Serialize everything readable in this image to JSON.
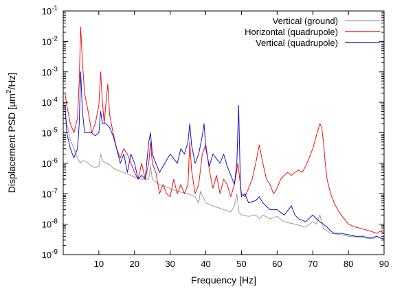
{
  "chart_data": {
    "type": "line",
    "title": "",
    "xlabel": "Frequency [Hz]",
    "ylabel": "Displacement PSD [µm²/Hz]",
    "ylabel_parts": {
      "pre": "Displacement PSD [µm",
      "sup": "2",
      "post": "/Hz]"
    },
    "xlim": [
      0,
      90
    ],
    "ylim": [
      1e-09,
      0.1
    ],
    "yscale": "log",
    "grid": false,
    "legend_position": "top-right",
    "x_ticks": [
      10,
      20,
      30,
      40,
      50,
      60,
      70,
      80,
      90
    ],
    "y_ticks": [
      {
        "exp": -9,
        "label_base": "10",
        "label_exp": "-9"
      },
      {
        "exp": -8,
        "label_base": "10",
        "label_exp": "-8"
      },
      {
        "exp": -7,
        "label_base": "10",
        "label_exp": "-7"
      },
      {
        "exp": -6,
        "label_base": "10",
        "label_exp": "-6"
      },
      {
        "exp": -5,
        "label_base": "10",
        "label_exp": "-5"
      },
      {
        "exp": -4,
        "label_base": "10",
        "label_exp": "-4"
      },
      {
        "exp": -3,
        "label_base": "10",
        "label_exp": "-3"
      },
      {
        "exp": -2,
        "label_base": "10",
        "label_exp": "-2"
      },
      {
        "exp": -1,
        "label_base": "10",
        "label_exp": "-1"
      }
    ],
    "series": [
      {
        "name": "Vertical (ground)",
        "color": "#999999",
        "x": [
          0.5,
          1,
          2,
          3,
          4,
          4.8,
          5.3,
          6,
          7,
          8,
          9,
          10,
          10.5,
          11,
          12,
          13,
          14,
          15,
          17,
          20,
          22,
          24,
          24.5,
          25,
          27,
          30,
          32,
          35,
          37,
          38,
          38.5,
          40,
          42,
          45,
          47,
          48,
          48.7,
          49.3,
          50,
          52,
          54,
          55,
          56,
          58,
          60,
          62,
          65,
          68,
          70,
          71,
          72,
          72.5,
          73,
          74,
          75,
          78,
          80,
          82,
          85,
          87,
          88,
          89,
          90
        ],
        "y": [
          5e-05,
          2e-05,
          6e-06,
          3e-06,
          1.5e-06,
          1e-06,
          1.2e-06,
          1.2e-06,
          1e-06,
          8e-07,
          7e-07,
          8e-07,
          2e-06,
          1.2e-06,
          1e-06,
          9e-07,
          7e-07,
          6e-07,
          5e-07,
          3.5e-07,
          3e-07,
          3e-07,
          8e-07,
          3e-07,
          2e-07,
          1.5e-07,
          1.2e-07,
          1e-07,
          8e-08,
          5e-08,
          1.2e-07,
          5e-08,
          4e-08,
          3e-08,
          2.5e-08,
          4e-08,
          1e-07,
          2.5e-08,
          2e-08,
          1.8e-08,
          2e-08,
          1.5e-08,
          2e-08,
          1.5e-08,
          1.8e-08,
          1.2e-08,
          1e-08,
          8e-09,
          1.2e-08,
          1e-08,
          2e-08,
          1.2e-08,
          7e-09,
          6e-09,
          5e-09,
          4.5e-09,
          4e-09,
          3.8e-09,
          3.5e-09,
          3.3e-09,
          4e-09,
          3.5e-09,
          3.3e-09
        ]
      },
      {
        "name": "Horizontal (quadrupole)",
        "color": "#ee1111",
        "x": [
          0.5,
          1,
          2,
          3,
          4,
          4.5,
          4.9,
          5.4,
          6,
          7,
          8,
          9,
          10,
          10.5,
          11,
          11.5,
          12,
          12.5,
          13,
          14,
          15,
          16,
          17,
          18,
          19,
          20,
          21,
          22,
          23,
          24,
          24.5,
          25,
          26,
          27,
          28,
          29,
          30,
          31,
          32,
          33,
          34,
          35,
          35.5,
          36,
          37,
          38,
          39,
          40,
          41,
          42,
          43,
          44,
          45,
          46,
          47,
          48,
          49,
          50,
          51,
          52,
          53,
          54,
          55,
          56,
          57,
          58,
          59,
          60,
          61,
          62,
          63,
          64,
          65,
          66,
          67,
          68,
          69,
          70,
          71,
          72,
          72.5,
          73,
          73.5,
          74,
          75,
          76,
          77,
          78,
          80,
          82,
          84,
          86,
          88,
          89,
          90
        ],
        "y": [
          0.0002,
          8e-05,
          2e-05,
          1e-05,
          3e-05,
          0.0005,
          0.03,
          0.002,
          0.0002,
          5e-05,
          1e-05,
          2e-05,
          8e-05,
          0.001,
          0.0001,
          2e-05,
          0.0001,
          0.0004,
          4e-05,
          1e-05,
          3e-06,
          1.5e-06,
          3e-06,
          2e-06,
          1e-06,
          5e-07,
          3e-07,
          1e-06,
          3e-07,
          1e-06,
          5e-06,
          1e-06,
          5e-07,
          1e-07,
          2e-07,
          1e-07,
          8e-08,
          3e-07,
          1e-07,
          2e-07,
          1e-07,
          2e-07,
          5e-06,
          6e-07,
          1e-07,
          2e-07,
          2e-06,
          4e-06,
          6e-07,
          1.5e-07,
          4e-07,
          1e-07,
          3e-07,
          2e-07,
          8e-08,
          2e-07,
          1e-06,
          1e-07,
          8e-08,
          1.5e-07,
          3e-07,
          1e-06,
          4e-06,
          1e-06,
          3e-07,
          2e-07,
          1e-07,
          1.5e-07,
          3e-07,
          4e-07,
          5e-07,
          4e-07,
          5e-07,
          6e-07,
          5e-07,
          8e-07,
          1.5e-06,
          3e-06,
          8e-06,
          2e-05,
          1.5e-05,
          5e-06,
          1e-06,
          3e-07,
          1e-07,
          5e-08,
          3e-08,
          2e-08,
          1e-08,
          8e-09,
          7e-09,
          6e-09,
          5e-09,
          6e-09,
          5e-09
        ]
      },
      {
        "name": "Vertical (quadrupole)",
        "color": "#1111cc",
        "x": [
          0.5,
          1,
          2,
          3,
          4,
          4.5,
          4.9,
          5.4,
          6,
          7,
          8,
          9,
          10,
          10.5,
          11,
          12,
          13,
          14,
          15,
          16,
          17,
          18,
          19,
          20,
          21,
          22,
          23,
          24,
          24.5,
          25,
          26,
          27,
          28,
          30,
          32,
          33,
          34,
          35,
          35.5,
          36,
          37,
          38,
          39,
          39.5,
          40,
          41,
          42,
          44,
          45,
          46,
          47,
          48,
          48.7,
          49.2,
          49.7,
          50,
          51,
          52,
          54,
          55,
          56,
          58,
          60,
          62,
          64,
          65,
          66,
          68,
          70,
          71,
          72,
          73,
          74,
          75,
          76,
          78,
          80,
          82,
          84,
          86,
          88,
          89,
          90
        ],
        "y": [
          8e-05,
          1e-05,
          3e-06,
          1.5e-06,
          3e-06,
          2e-05,
          0.001,
          5e-05,
          1e-05,
          1e-05,
          1e-05,
          8e-06,
          1e-05,
          5e-05,
          2e-05,
          2e-05,
          1.5e-05,
          8e-06,
          3e-06,
          1e-06,
          2e-06,
          5e-07,
          2e-06,
          1e-06,
          3e-07,
          4e-07,
          3e-07,
          5e-06,
          1e-05,
          2e-06,
          1e-06,
          5e-07,
          8e-07,
          2e-06,
          1e-06,
          3e-06,
          2e-06,
          5e-06,
          2e-05,
          4e-06,
          1e-06,
          2e-06,
          8e-06,
          2e-05,
          3e-06,
          8e-07,
          2e-06,
          1e-06,
          2e-06,
          8e-07,
          4e-07,
          2e-07,
          1e-06,
          8e-05,
          2e-07,
          8e-08,
          1e-07,
          5e-08,
          6e-08,
          8e-08,
          5e-08,
          3e-08,
          3e-08,
          2e-08,
          4e-08,
          2e-08,
          1.5e-08,
          1.2e-08,
          2e-08,
          1.5e-08,
          1.2e-08,
          1e-08,
          8e-09,
          6e-09,
          5e-09,
          5e-09,
          4.5e-09,
          4e-09,
          4e-09,
          3.5e-09,
          4e-09,
          3.5e-09,
          3.3e-09
        ]
      }
    ]
  }
}
